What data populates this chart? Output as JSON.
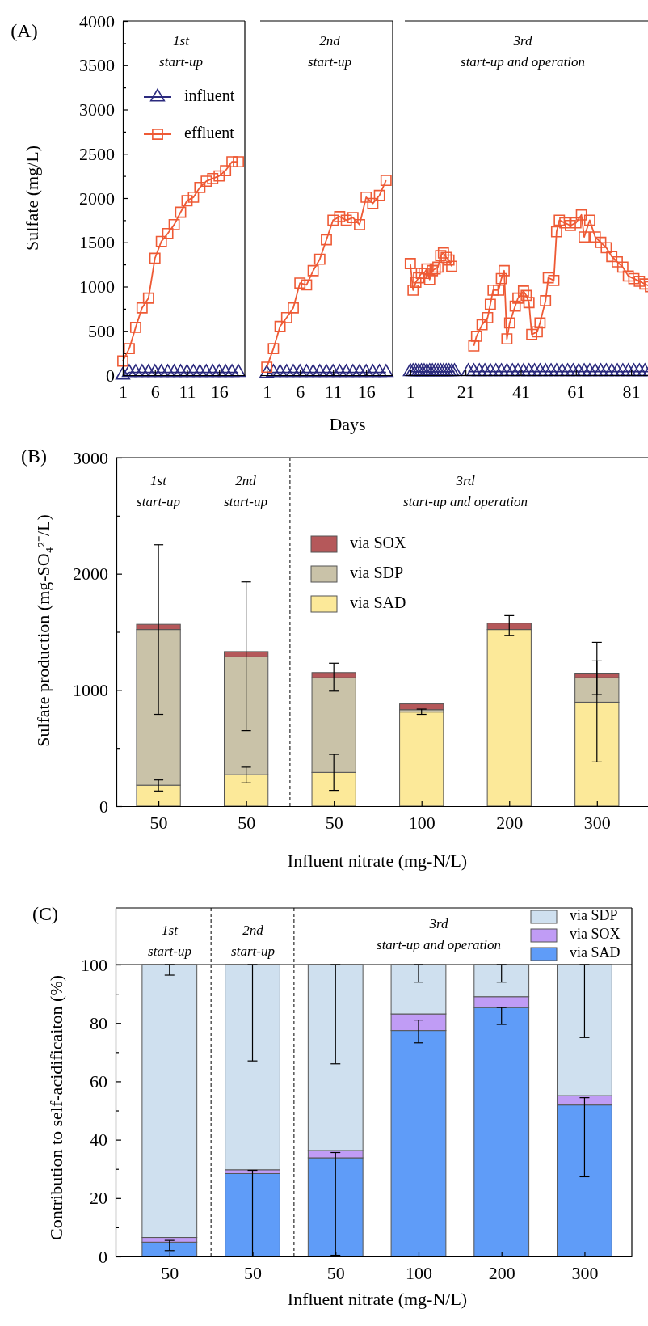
{
  "chart_data": [
    {
      "type": "line",
      "ylabel": "Sulfate (mg/L)",
      "annotations": [
        "(A)",
        "1st\nstart-up"
      ],
      "legend": "top left",
      "xlim": [
        1,
        20
      ],
      "xticks": [
        1,
        6,
        11,
        16
      ],
      "ylim": [
        0,
        4000
      ],
      "yticks": [
        0,
        {
          "value": 250,
          "label": null
        },
        500,
        {
          "value": 750,
          "label": null
        },
        1000,
        {
          "value": 1250,
          "label": null
        },
        1500,
        {
          "value": 1750,
          "label": null
        },
        2000,
        {
          "value": 2250,
          "label": null
        },
        2500,
        {
          "value": 2750,
          "label": null
        },
        3000,
        {
          "value": 3250,
          "label": null
        },
        3500,
        {
          "value": 3750,
          "label": null
        },
        4000
      ],
      "series": [
        {
          "name": "influent",
          "color": "#2b2a7e",
          "marker": "triangle",
          "x": [
            1,
            2,
            3,
            4,
            5,
            6,
            7,
            8,
            9,
            10,
            11,
            12,
            13,
            14,
            15,
            16,
            17,
            18,
            19
          ],
          "values": [
            0,
            30,
            30,
            30,
            30,
            30,
            30,
            30,
            30,
            30,
            30,
            30,
            30,
            30,
            30,
            30,
            30,
            30,
            30
          ]
        },
        {
          "name": "effluent",
          "color": "#ee5a35",
          "marker": "square",
          "x": [
            1,
            2,
            3,
            4,
            5,
            6,
            7,
            8,
            9,
            10,
            11,
            12,
            13,
            14,
            15,
            16,
            17,
            18,
            19
          ],
          "values": [
            160,
            300,
            540,
            760,
            870,
            1320,
            1510,
            1600,
            1700,
            1840,
            1970,
            2010,
            2120,
            2190,
            2220,
            2250,
            2310,
            2410,
            2410
          ]
        }
      ]
    },
    {
      "type": "line",
      "xlabel": "Days",
      "annotations": [
        "2nd\nstart-up"
      ],
      "tick_labels": "x",
      "xlim": [
        0,
        20
      ],
      "xticks": [
        1,
        6,
        11,
        16
      ],
      "ylim": [
        0,
        4000
      ],
      "series": [
        {
          "color": "#2b2a7e",
          "marker": "triangle",
          "x": [
            1,
            2,
            3,
            4,
            5,
            6,
            7,
            8,
            9,
            10,
            11,
            12,
            13,
            14,
            15,
            16,
            17,
            18,
            19
          ],
          "values": [
            20,
            30,
            30,
            30,
            30,
            30,
            30,
            30,
            30,
            30,
            30,
            30,
            30,
            30,
            30,
            30,
            30,
            30,
            30
          ]
        },
        {
          "color": "#ee5a35",
          "marker": "square",
          "x": [
            1,
            2,
            3,
            4,
            5,
            6,
            7,
            8,
            9,
            10,
            11,
            12,
            13,
            14,
            15,
            16,
            17,
            18,
            19
          ],
          "values": [
            90,
            300,
            550,
            650,
            760,
            1040,
            1020,
            1180,
            1310,
            1530,
            1750,
            1790,
            1750,
            1780,
            1700,
            2010,
            1940,
            2030,
            2200
          ]
        }
      ]
    },
    {
      "type": "line",
      "annotations": [
        "3rd\nstart-up and operation"
      ],
      "tick_labels": "x",
      "xlim": [
        -1,
        88
      ],
      "xticks": [
        1,
        21,
        41,
        61,
        81
      ],
      "ylim": [
        0,
        4000
      ],
      "series": [
        {
          "color": "#2b2a7e",
          "marker": "triangle",
          "x": [
            1,
            2,
            3,
            4,
            5,
            6,
            7,
            8,
            9,
            10,
            11,
            12,
            13,
            14,
            15,
            16,
            17,
            19,
            22,
            24,
            26,
            28,
            30,
            32,
            34,
            36,
            38,
            40,
            42,
            44,
            46,
            48,
            50,
            52,
            54,
            56,
            58,
            60,
            62,
            64,
            66,
            68,
            70,
            72,
            74,
            76,
            78,
            80,
            82,
            84,
            86,
            88
          ],
          "values": [
            40,
            40,
            40,
            40,
            40,
            40,
            40,
            40,
            40,
            40,
            40,
            40,
            40,
            40,
            40,
            40,
            40,
            null,
            40,
            40,
            40,
            40,
            40,
            40,
            40,
            40,
            40,
            40,
            40,
            40,
            40,
            40,
            40,
            40,
            40,
            40,
            40,
            40,
            40,
            40,
            40,
            40,
            40,
            40,
            40,
            40,
            40,
            40,
            40,
            40,
            40,
            40
          ]
        },
        {
          "color": "#ee5a35",
          "marker": "square",
          "x": [
            1,
            2,
            3,
            4,
            5,
            6,
            7,
            8,
            9,
            10,
            11,
            12,
            13,
            14,
            15,
            16,
            20,
            24,
            25,
            27,
            29,
            30,
            31,
            33,
            34,
            35,
            36,
            37,
            39,
            40,
            42,
            43,
            44,
            45,
            47,
            48,
            50,
            51,
            53,
            54,
            55,
            57,
            59,
            61,
            63,
            64,
            66,
            68,
            70,
            72,
            74,
            76,
            78,
            80,
            82,
            84,
            86,
            88
          ],
          "values": [
            1260,
            960,
            1050,
            1100,
            1150,
            1150,
            1200,
            1080,
            1180,
            1200,
            1220,
            1350,
            1380,
            1330,
            1300,
            1230,
            null,
            330,
            440,
            570,
            650,
            800,
            960,
            960,
            1090,
            1180,
            410,
            590,
            780,
            870,
            950,
            900,
            820,
            460,
            490,
            590,
            840,
            1100,
            1070,
            1620,
            1750,
            1720,
            1690,
            1720,
            1810,
            1560,
            1750,
            1560,
            1500,
            1440,
            1340,
            1280,
            1220,
            1120,
            1090,
            1060,
            1030,
            1000
          ]
        }
      ]
    },
    {
      "type": "bar",
      "stacked": true,
      "xlabel": "Influent nitrate (mg-N/L)",
      "ylabel": "Sulfate production (mg-SO₄²⁻/L)",
      "annotations": [
        "(B)",
        "1st\nstart-up",
        "2nd\nstart-up",
        "3rd\nstart-up and operation"
      ],
      "legend": "top",
      "categories": [
        "50",
        "50",
        "50",
        "100",
        "200",
        "300"
      ],
      "ylim": [
        0,
        3000
      ],
      "yticks": [
        0,
        {
          "value": 500,
          "label": null
        },
        1000,
        {
          "value": 1500,
          "label": null
        },
        2000,
        {
          "value": 2500,
          "label": null
        },
        3000
      ],
      "series": [
        {
          "name": "via SAD",
          "color": "#fce999",
          "values": [
            180,
            270,
            290,
            810,
            1520,
            895
          ],
          "errors": [
            [
              130,
              225
            ],
            [
              200,
              335
            ],
            [
              135,
              445
            ],
            [
              790,
              835
            ],
            [
              1470,
              1640
            ],
            [
              380,
              1410
            ]
          ]
        },
        {
          "name": "via SDP",
          "color": "#c9c2a8",
          "values": [
            1340,
            1015,
            815,
            20,
            null,
            210
          ],
          "errors": [
            [
              790,
              2250
            ],
            [
              650,
              1930
            ],
            [
              990,
              1230
            ],
            null,
            null,
            [
              960,
              1250
            ]
          ]
        },
        {
          "name": "via SOX",
          "color": "#b5585a",
          "values": [
            45,
            45,
            45,
            50,
            55,
            40
          ]
        }
      ]
    },
    {
      "type": "bar",
      "stacked": true,
      "xlabel": "Influent nitrate (mg-N/L)",
      "ylabel": "Contribution to self-acidificaiton (%)",
      "annotations": [
        "(C)",
        "1st\nstart-up",
        "2nd\nstart-up",
        "3rd\nstart-up and operation"
      ],
      "legend": "top right",
      "categories": [
        "50",
        "50",
        "50",
        "100",
        "200",
        "300"
      ],
      "ylim": [
        0,
        119.4
      ],
      "yticks": [
        0,
        {
          "value": 10,
          "label": null
        },
        20,
        {
          "value": 30,
          "label": null
        },
        40,
        {
          "value": 50,
          "label": null
        },
        60,
        {
          "value": 70,
          "label": null
        },
        80,
        {
          "value": 90,
          "label": null
        },
        100
      ],
      "ref_lines": [
        {
          "axis": "y",
          "value": 100,
          "line_style": "solid"
        }
      ],
      "series": [
        {
          "name": "via SAD",
          "color": "#5f9cf8",
          "values": [
            4.9,
            28.4,
            33.8,
            77.4,
            85.3,
            51.9
          ],
          "errors": [
            [
              2,
              5.5
            ],
            [
              0,
              29.5
            ],
            [
              0.4,
              35.6
            ],
            [
              73.2,
              81
            ],
            [
              79.5,
              85.3
            ],
            [
              27.3,
              54.4
            ]
          ]
        },
        {
          "name": "via SOX",
          "color": "#c09cf5",
          "values": [
            1.6,
            1.3,
            2.5,
            5.7,
            3.7,
            3.2
          ]
        },
        {
          "name": "via SDP",
          "color": "#cfe0ef",
          "values": [
            93.5,
            70.3,
            63.7,
            16.9,
            11,
            44.9
          ],
          "errors": [
            [
              96.4,
              100
            ],
            [
              67,
              100
            ],
            [
              66,
              100
            ],
            [
              94,
              100
            ],
            [
              94,
              100
            ],
            [
              75,
              100
            ]
          ]
        }
      ]
    }
  ]
}
